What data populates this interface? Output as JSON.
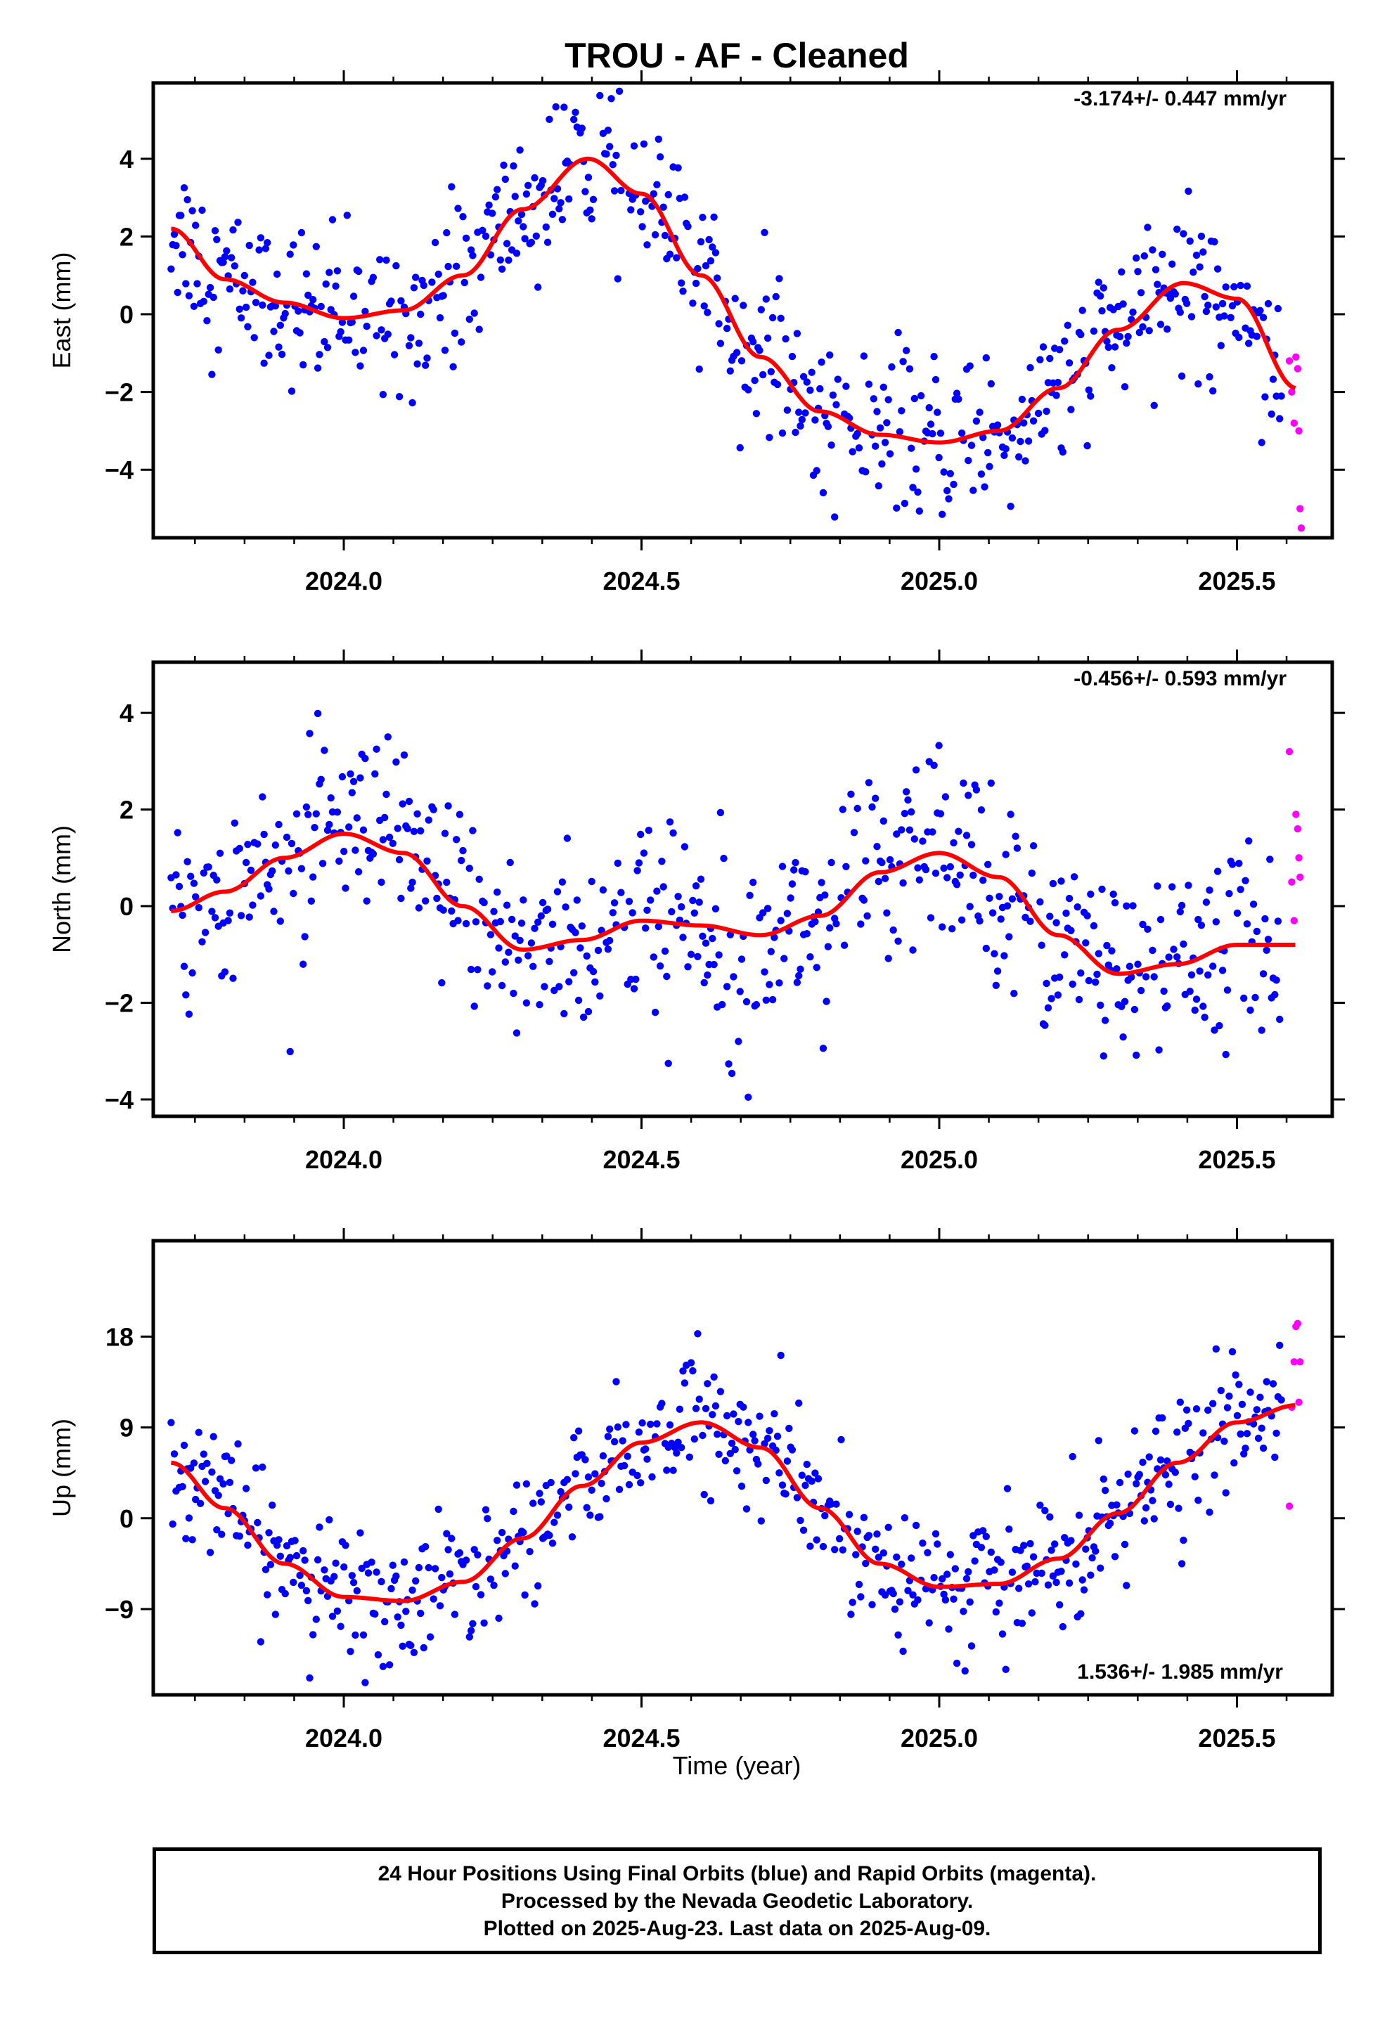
{
  "title": "TROU  - AF - Cleaned",
  "xlabel": "Time (year)",
  "caption": {
    "line1": "24 Hour Positions Using Final Orbits (blue) and Rapid Orbits (magenta).",
    "line2": "Processed by the Nevada Geodetic Laboratory.",
    "line3": "Plotted on 2025-Aug-23. Last data on 2025-Aug-09."
  },
  "colors": {
    "final": "#0000ff",
    "rapid": "#ff00ff",
    "fit": "#ff0000",
    "axis": "#000000"
  },
  "chart_data": [
    {
      "type": "scatter",
      "name": "east",
      "ylabel": "East (mm)",
      "rate_text": "-3.174+/- 0.447 mm/yr",
      "xlim": [
        2023.68,
        2025.66
      ],
      "ylim": [
        -5.75,
        5.95
      ],
      "yticks": [
        -4,
        -2,
        0,
        2,
        4
      ],
      "xticks": [
        2024.0,
        2024.5,
        2025.0,
        2025.5
      ],
      "xtick_labels": [
        "2024.0",
        "2024.5",
        "2025.0",
        "2025.5"
      ],
      "fit": {
        "x": [
          2023.71,
          2023.8,
          2023.9,
          2024.0,
          2024.1,
          2024.2,
          2024.3,
          2024.41,
          2024.5,
          2024.6,
          2024.7,
          2024.8,
          2024.9,
          2025.0,
          2025.1,
          2025.2,
          2025.3,
          2025.41,
          2025.5,
          2025.6
        ],
        "y": [
          2.2,
          0.9,
          0.3,
          -0.1,
          0.1,
          1.0,
          2.7,
          4.0,
          3.1,
          1.0,
          -1.1,
          -2.5,
          -3.1,
          -3.3,
          -3.0,
          -1.9,
          -0.4,
          0.8,
          0.4,
          -1.9
        ]
      },
      "rapid": {
        "x": [
          2025.588,
          2025.592,
          2025.596,
          2025.599,
          2025.602,
          2025.604,
          2025.606,
          2025.608
        ],
        "y": [
          -1.2,
          -2.0,
          -2.8,
          -1.1,
          -1.4,
          -3.0,
          -5.0,
          -5.5
        ]
      },
      "final_scatter": 1.0,
      "final_mean_err": 0.1
    },
    {
      "type": "scatter",
      "name": "north",
      "ylabel": "North (mm)",
      "rate_text": "-0.456+/- 0.593 mm/yr",
      "xlim": [
        2023.68,
        2025.66
      ],
      "ylim": [
        -4.35,
        5.05
      ],
      "yticks": [
        -4,
        -2,
        0,
        2,
        4
      ],
      "xticks": [
        2024.0,
        2024.5,
        2025.0,
        2025.5
      ],
      "xtick_labels": [
        "2024.0",
        "2024.5",
        "2025.0",
        "2025.5"
      ],
      "fit": {
        "x": [
          2023.71,
          2023.8,
          2023.9,
          2024.0,
          2024.1,
          2024.2,
          2024.3,
          2024.4,
          2024.5,
          2024.6,
          2024.7,
          2024.8,
          2024.9,
          2025.0,
          2025.1,
          2025.2,
          2025.3,
          2025.4,
          2025.5,
          2025.6
        ],
        "y": [
          -0.1,
          0.3,
          1.0,
          1.5,
          1.1,
          0.0,
          -0.9,
          -0.7,
          -0.3,
          -0.4,
          -0.6,
          -0.2,
          0.7,
          1.1,
          0.6,
          -0.6,
          -1.4,
          -1.2,
          -0.8,
          -0.8
        ]
      },
      "rapid": {
        "x": [
          2025.588,
          2025.592,
          2025.596,
          2025.599,
          2025.602,
          2025.604,
          2025.606
        ],
        "y": [
          3.2,
          0.5,
          -0.3,
          1.9,
          1.6,
          1.0,
          0.6
        ]
      },
      "final_scatter": 1.0,
      "final_mean_err": 0.1
    },
    {
      "type": "scatter",
      "name": "up",
      "ylabel": "Up (mm)",
      "rate_text": "1.536+/- 1.985 mm/yr",
      "xlim": [
        2023.68,
        2025.66
      ],
      "ylim": [
        -17.5,
        27.5
      ],
      "yticks": [
        -9,
        0,
        9,
        18
      ],
      "xticks": [
        2024.0,
        2024.5,
        2025.0,
        2025.5
      ],
      "xtick_labels": [
        "2024.0",
        "2024.5",
        "2025.0",
        "2025.5"
      ],
      "fit": {
        "x": [
          2023.71,
          2023.8,
          2023.9,
          2024.0,
          2024.1,
          2024.2,
          2024.3,
          2024.4,
          2024.5,
          2024.6,
          2024.7,
          2024.8,
          2024.9,
          2025.0,
          2025.1,
          2025.2,
          2025.3,
          2025.4,
          2025.5,
          2025.6
        ],
        "y": [
          5.5,
          1.0,
          -4.5,
          -7.8,
          -8.2,
          -6.3,
          -2.0,
          3.2,
          7.5,
          9.5,
          7.0,
          1.0,
          -4.5,
          -6.8,
          -6.5,
          -4.0,
          0.5,
          5.5,
          9.5,
          11.2
        ]
      },
      "rapid": {
        "x": [
          2025.588,
          2025.592,
          2025.596,
          2025.599,
          2025.602,
          2025.604,
          2025.606
        ],
        "y": [
          1.2,
          11.0,
          15.5,
          19.0,
          19.3,
          11.5,
          15.5
        ]
      },
      "final_scatter": 3.2,
      "final_mean_err": 0.2
    }
  ]
}
